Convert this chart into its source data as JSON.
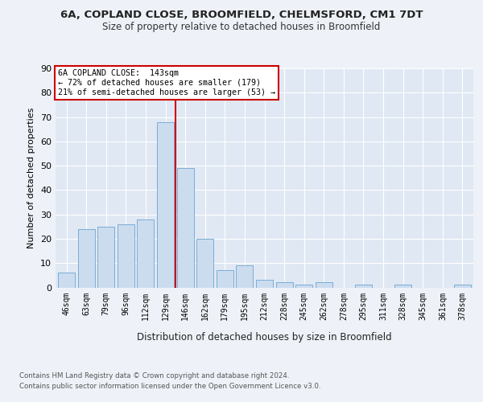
{
  "title1": "6A, COPLAND CLOSE, BROOMFIELD, CHELMSFORD, CM1 7DT",
  "title2": "Size of property relative to detached houses in Broomfield",
  "xlabel": "Distribution of detached houses by size in Broomfield",
  "ylabel": "Number of detached properties",
  "categories": [
    "46sqm",
    "63sqm",
    "79sqm",
    "96sqm",
    "112sqm",
    "129sqm",
    "146sqm",
    "162sqm",
    "179sqm",
    "195sqm",
    "212sqm",
    "228sqm",
    "245sqm",
    "262sqm",
    "278sqm",
    "295sqm",
    "311sqm",
    "328sqm",
    "345sqm",
    "361sqm",
    "378sqm"
  ],
  "values": [
    6,
    24,
    25,
    26,
    28,
    68,
    49,
    20,
    7,
    9,
    3,
    2,
    1,
    2,
    0,
    1,
    0,
    1,
    0,
    0,
    1
  ],
  "bar_color": "#ccdcef",
  "bar_edge_color": "#7aadd4",
  "marker_line_color": "#cc0000",
  "annotation_line1": "6A COPLAND CLOSE:  143sqm",
  "annotation_line2": "← 72% of detached houses are smaller (179)",
  "annotation_line3": "21% of semi-detached houses are larger (53) →",
  "footer1": "Contains HM Land Registry data © Crown copyright and database right 2024.",
  "footer2": "Contains public sector information licensed under the Open Government Licence v3.0.",
  "background_color": "#eef2f8",
  "plot_bg_color": "#e0e8f4",
  "ylim": [
    0,
    90
  ],
  "yticks": [
    0,
    10,
    20,
    30,
    40,
    50,
    60,
    70,
    80,
    90
  ]
}
